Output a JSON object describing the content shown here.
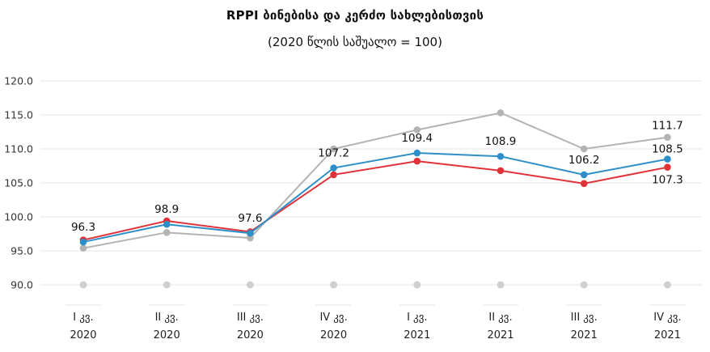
{
  "chart_data": {
    "type": "line",
    "title": "RPPI ბინებისა და კერძო სახლებისთვის",
    "subtitle": "(2020 წლის საშუალო = 100)",
    "categories": [
      [
        "I კვ.",
        "2020"
      ],
      [
        "II კვ.",
        "2020"
      ],
      [
        "III კვ.",
        "2020"
      ],
      [
        "IV კვ.",
        "2020"
      ],
      [
        "I კვ.",
        "2021"
      ],
      [
        "II კვ.",
        "2021"
      ],
      [
        "III კვ.",
        "2021"
      ],
      [
        "IV კვ.",
        "2021"
      ]
    ],
    "ylim": [
      90,
      120
    ],
    "yticks": [
      "90.0",
      "95.0",
      "100.0",
      "105.0",
      "110.0",
      "115.0",
      "120.0"
    ],
    "grid": true,
    "legend": "none",
    "series": [
      {
        "color": "#2e8fc8",
        "values": [
          96.3,
          98.9,
          97.6,
          107.2,
          109.4,
          108.9,
          106.2,
          108.5
        ],
        "labels": [
          "96.3",
          "98.9",
          "97.6",
          "107.2",
          "109.4",
          "108.9",
          "106.2",
          "108.5"
        ]
      },
      {
        "color": "#e03238",
        "values": [
          96.6,
          99.4,
          97.8,
          106.2,
          108.2,
          106.8,
          104.9,
          107.3
        ],
        "labels": [
          "",
          "",
          "",
          "",
          "",
          "",
          "",
          "107.3"
        ]
      },
      {
        "color": "#b3b3b3",
        "values": [
          95.4,
          97.7,
          96.9,
          110.0,
          112.8,
          115.3,
          110.0,
          111.7
        ],
        "labels": [
          "",
          "",
          "",
          "",
          "",
          "",
          "",
          "111.7"
        ]
      }
    ]
  }
}
